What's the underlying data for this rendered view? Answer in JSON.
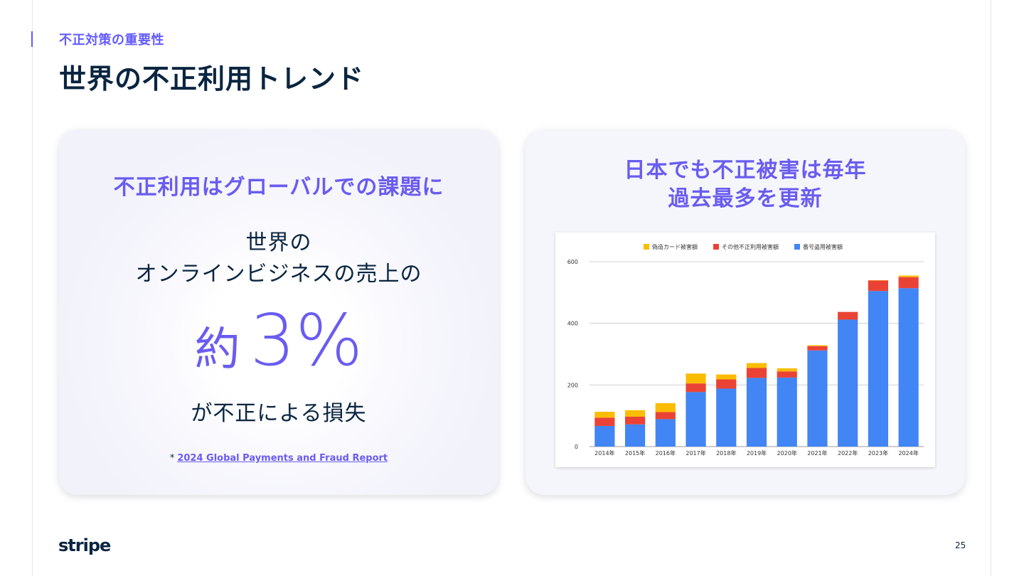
{
  "slide": {
    "eyebrow": "不正対策の重要性",
    "title": "世界の不正利用トレンド",
    "page_number": "25",
    "brand": "stripe"
  },
  "left_card": {
    "heading": "不正利用はグローバルでの課題に",
    "line1": "世界の",
    "line2": "オンラインビジネスの売上の",
    "stat_prefix": "約",
    "stat_value": "3%",
    "line3": "が不正による損失",
    "footnote_marker": "*",
    "footnote_link": "2024 Global Payments and Fraud Report"
  },
  "right_card": {
    "heading_line1": "日本でも不正被害は毎年",
    "heading_line2": "過去最多を更新"
  },
  "colors": {
    "accent": "#635bff",
    "heading": "#6a5cf0",
    "navy": "#0a2540",
    "series_counterfeit": "#fbbc04",
    "series_other": "#ea4335",
    "series_number_theft": "#4285f4"
  },
  "chart_data": {
    "type": "bar",
    "stacked": true,
    "categories": [
      "2014年",
      "2015年",
      "2016年",
      "2017年",
      "2018年",
      "2019年",
      "2020年",
      "2021年",
      "2022年",
      "2023年",
      "2024年"
    ],
    "series": [
      {
        "name": "番号盗用被害額",
        "color": "#4285f4",
        "values": [
          67,
          72,
          89,
          177,
          188,
          223,
          224,
          312,
          412,
          505,
          514
        ]
      },
      {
        "name": "その他不正利用被害額",
        "color": "#ea4335",
        "values": [
          27,
          25,
          23,
          28,
          30,
          32,
          20,
          14,
          25,
          34,
          36
        ]
      },
      {
        "name": "偽造カード被害額",
        "color": "#fbbc04",
        "values": [
          19,
          21,
          29,
          32,
          16,
          16,
          10,
          3,
          0,
          1,
          5
        ]
      }
    ],
    "legend_order": [
      "偽造カード被害額",
      "その他不正利用被害額",
      "番号盗用被害額"
    ],
    "legend_position": "top",
    "ylim": [
      0,
      600
    ],
    "yticks": [
      0,
      200,
      400,
      600
    ],
    "grid": true
  }
}
